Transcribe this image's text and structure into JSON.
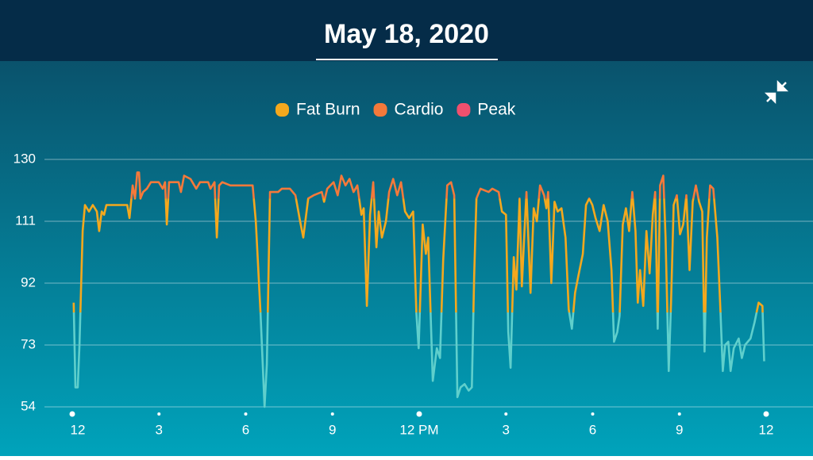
{
  "chart_data": {
    "type": "line",
    "title": "May 18, 2020",
    "x": [
      0.05,
      0.11,
      0.19,
      0.25,
      0.36,
      0.44,
      0.58,
      0.71,
      0.85,
      0.93,
      1.02,
      1.1,
      1.18,
      1.9,
      1.98,
      2.09,
      2.17,
      2.25,
      2.31,
      2.36,
      2.45,
      2.58,
      2.72,
      2.99,
      3.13,
      3.21,
      3.27,
      3.35,
      3.68,
      3.76,
      3.87,
      4.09,
      4.29,
      4.42,
      4.7,
      4.78,
      4.92,
      5.0,
      5.08,
      5.19,
      5.47,
      5.74,
      5.88,
      6.24,
      6.35,
      6.51,
      6.65,
      6.73,
      6.84,
      7.12,
      7.25,
      7.53,
      7.72,
      7.88,
      7.99,
      8.16,
      8.35,
      8.63,
      8.71,
      8.82,
      9.04,
      9.18,
      9.31,
      9.45,
      9.59,
      9.73,
      9.86,
      10.0,
      10.08,
      10.19,
      10.3,
      10.41,
      10.52,
      10.6,
      10.71,
      10.85,
      10.96,
      11.1,
      11.24,
      11.37,
      11.51,
      11.65,
      11.79,
      11.9,
      11.98,
      12.12,
      12.23,
      12.31,
      12.47,
      12.61,
      12.72,
      12.83,
      12.97,
      13.1,
      13.21,
      13.32,
      13.43,
      13.57,
      13.71,
      13.82,
      13.9,
      13.98,
      14.12,
      14.4,
      14.53,
      14.75,
      14.86,
      15.0,
      15.08,
      15.16,
      15.27,
      15.36,
      15.47,
      15.55,
      15.63,
      15.71,
      15.85,
      15.96,
      16.07,
      16.18,
      16.32,
      16.4,
      16.46,
      16.57,
      16.68,
      16.79,
      16.92,
      17.06,
      17.17,
      17.28,
      17.39,
      17.5,
      17.66,
      17.77,
      17.88,
      17.99,
      18.1,
      18.24,
      18.38,
      18.52,
      18.65,
      18.74,
      18.85,
      18.93,
      19.04,
      19.15,
      19.26,
      19.37,
      19.48,
      19.56,
      19.64,
      19.75,
      19.86,
      19.97,
      20.08,
      20.16,
      20.25,
      20.33,
      20.44,
      20.52,
      20.63,
      20.71,
      20.8,
      20.91,
      21.02,
      21.13,
      21.24,
      21.35,
      21.46,
      21.57,
      21.68,
      21.79,
      21.87,
      21.95,
      22.06,
      22.17,
      22.31,
      22.42,
      22.5,
      22.58,
      22.69,
      22.77,
      22.88,
      23.05,
      23.16,
      23.27,
      23.46,
      23.6,
      23.74,
      23.87,
      23.93
    ],
    "values": [
      86,
      60,
      60,
      73,
      108,
      116,
      114,
      116,
      114,
      108,
      114,
      113,
      116,
      116,
      112,
      122,
      118,
      126,
      126,
      118,
      120,
      121,
      123,
      123,
      121,
      123,
      110,
      123,
      123,
      120,
      125,
      124,
      121,
      123,
      123,
      121,
      123,
      106,
      122,
      123,
      122,
      122,
      122,
      122,
      111,
      83,
      54,
      67,
      120,
      120,
      121,
      121,
      119,
      111,
      106,
      118,
      119,
      120,
      117,
      121,
      123,
      119,
      125,
      122,
      124,
      120,
      122,
      113,
      115,
      85,
      113,
      123,
      103,
      114,
      106,
      111,
      120,
      124,
      119,
      123,
      114,
      112,
      114,
      83,
      72,
      110,
      101,
      106,
      62,
      72,
      69,
      99,
      122,
      123,
      119,
      57,
      60,
      61,
      59,
      60,
      94,
      118,
      121,
      120,
      121,
      120,
      114,
      113,
      77,
      66,
      100,
      90,
      118,
      91,
      106,
      120,
      89,
      115,
      111,
      122,
      119,
      115,
      120,
      92,
      117,
      114,
      115,
      106,
      84,
      78,
      89,
      94,
      101,
      116,
      118,
      116,
      112,
      108,
      116,
      111,
      96,
      74,
      77,
      82,
      110,
      115,
      108,
      120,
      108,
      86,
      96,
      85,
      108,
      95,
      113,
      120,
      78,
      122,
      125,
      106,
      65,
      86,
      116,
      119,
      107,
      110,
      119,
      96,
      117,
      122,
      117,
      114,
      71,
      106,
      122,
      121,
      106,
      83,
      65,
      73,
      74,
      65,
      72,
      75,
      69,
      73,
      75,
      80,
      86,
      85,
      68
    ],
    "line_color": "#5fcfcc",
    "zones": [
      {
        "name": "Fat Burn",
        "color": "#f4a81d",
        "min": 83
      },
      {
        "name": "Cardio",
        "color": "#f4793a",
        "min": 118
      },
      {
        "name": "Peak",
        "color": "#f0506e",
        "min": 144
      }
    ],
    "xlim": [
      0,
      24
    ],
    "xticks": [
      {
        "value": 0,
        "label": "12"
      },
      3,
      6,
      9,
      {
        "value": 12,
        "label": "12 PM"
      },
      3,
      6,
      9,
      {
        "value": 24,
        "label": "12"
      }
    ],
    "ylim": [
      54,
      130
    ],
    "yticks": [
      54,
      73,
      92,
      111,
      130
    ],
    "grid": true
  }
}
